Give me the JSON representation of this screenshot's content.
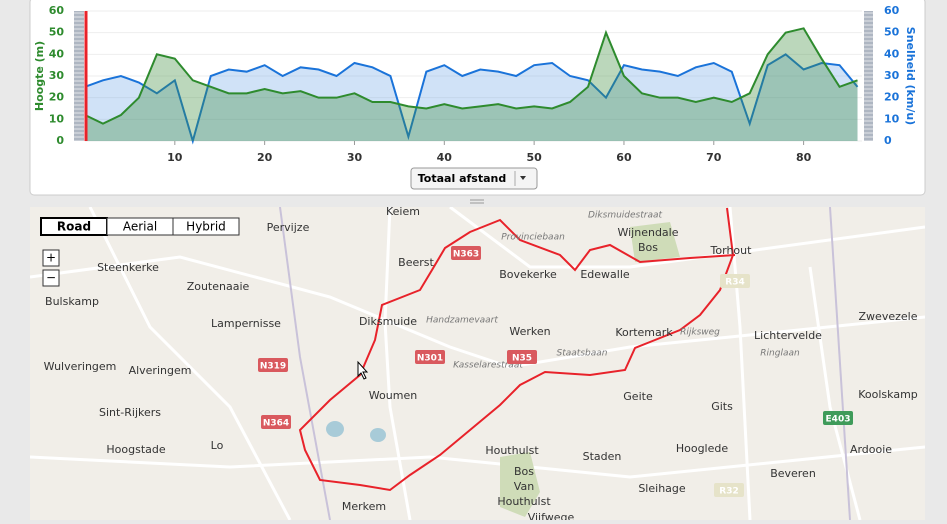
{
  "chart_data": {
    "type": "area",
    "x": [
      0,
      2,
      4,
      6,
      8,
      10,
      12,
      14,
      16,
      18,
      20,
      22,
      24,
      26,
      28,
      30,
      32,
      34,
      36,
      38,
      40,
      42,
      44,
      46,
      48,
      50,
      52,
      54,
      56,
      58,
      60,
      62,
      64,
      66,
      68,
      70,
      72,
      74,
      76,
      78,
      80,
      82,
      84,
      86
    ],
    "xlim": [
      0,
      86.5
    ],
    "xticks": [
      10,
      20,
      30,
      40,
      50,
      60,
      70,
      80
    ],
    "ylim": [
      0,
      60
    ],
    "yticks": [
      0,
      10,
      20,
      30,
      40,
      50,
      60
    ],
    "y2lim": [
      0,
      60
    ],
    "y2ticks": [
      0,
      10,
      20,
      30,
      40,
      50,
      60
    ],
    "series": [
      {
        "name": "Hoogte (m)",
        "color": "#2e8b2e",
        "values": [
          12,
          8,
          12,
          20,
          40,
          38,
          28,
          25,
          22,
          22,
          24,
          22,
          23,
          20,
          20,
          22,
          18,
          18,
          16,
          15,
          17,
          15,
          16,
          17,
          15,
          16,
          15,
          18,
          25,
          50,
          30,
          22,
          20,
          20,
          18,
          20,
          18,
          22,
          40,
          50,
          52,
          38,
          25,
          28
        ]
      },
      {
        "name": "Snelheid (km/u)",
        "color": "#1a73d9",
        "axis": "y2",
        "values": [
          25,
          28,
          30,
          27,
          22,
          28,
          0,
          30,
          33,
          32,
          35,
          30,
          34,
          33,
          30,
          36,
          34,
          30,
          2,
          32,
          35,
          30,
          33,
          32,
          30,
          35,
          36,
          30,
          28,
          20,
          35,
          33,
          32,
          30,
          34,
          36,
          32,
          8,
          35,
          40,
          33,
          36,
          35,
          25
        ]
      }
    ]
  },
  "controls": {
    "x_axis_select": "Totaal afstand"
  },
  "map": {
    "buttons": [
      "Road",
      "Aerial",
      "Hybrid"
    ],
    "zoom": [
      "+",
      "−"
    ],
    "places": [
      "Keiem",
      "Pervijze",
      "Beerst",
      "Bovekerke",
      "Edewalle",
      "Wijnendale",
      "Bos",
      "Torhout",
      "Steenkerke",
      "Zoutenaaie",
      "Bulskamp",
      "Lampernisse",
      "Diksmuide",
      "Werken",
      "Kortemark",
      "Lichtervelde",
      "Zwevezele",
      "Wulveringem",
      "Alveringem",
      "Woumen",
      "Geite",
      "Gits",
      "Koolskamp",
      "Sint-Rijkers",
      "Lo",
      "Hoogstade",
      "Houthulst",
      "Staden",
      "Hooglede",
      "Ardooie",
      "Beveren",
      "Bos",
      "Van",
      "Houthulst",
      "Sleihage",
      "Merkem",
      "Vijfwege"
    ],
    "roads": [
      "Provinciebaan",
      "Handzamevaart",
      "Staatsbaan",
      "Kasselarestraat",
      "Rijksweg",
      "Diksmuidestraat",
      "Ringlaan"
    ],
    "shields": [
      "N363",
      "N301",
      "N35",
      "N319",
      "N364",
      "R34",
      "R32",
      "E403"
    ]
  }
}
